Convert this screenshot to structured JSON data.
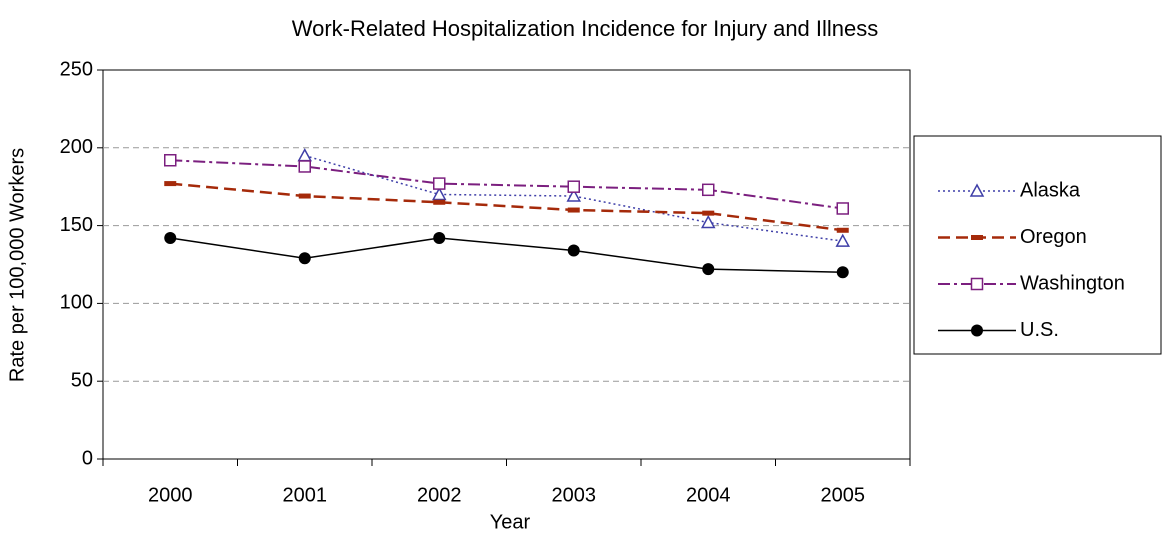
{
  "chart_data": {
    "type": "line",
    "title": "Work-Related Hospitalization Incidence for Injury and Illness",
    "xlabel": "Year",
    "ylabel": "Rate per 100,000 Workers",
    "categories": [
      "2000",
      "2001",
      "2002",
      "2003",
      "2004",
      "2005"
    ],
    "series": [
      {
        "name": "Alaska",
        "color": "#3f3fa8",
        "marker": "triangle",
        "dash": "dotted",
        "values": [
          null,
          195,
          170,
          169,
          152,
          140
        ]
      },
      {
        "name": "Oregon",
        "color": "#a52a0a",
        "marker": "dash",
        "dash": "dashed",
        "values": [
          177,
          169,
          165,
          160,
          158,
          147
        ]
      },
      {
        "name": "Washington",
        "color": "#7b1f7f",
        "marker": "square",
        "dash": "dashdot",
        "values": [
          192,
          188,
          177,
          175,
          173,
          161
        ]
      },
      {
        "name": "U.S.",
        "color": "#000000",
        "marker": "circle",
        "dash": "solid",
        "values": [
          142,
          129,
          142,
          134,
          122,
          120
        ]
      }
    ],
    "ylim": [
      0,
      250
    ],
    "yticks": [
      0,
      50,
      100,
      150,
      200,
      250
    ],
    "grid": true,
    "legend": "right"
  }
}
